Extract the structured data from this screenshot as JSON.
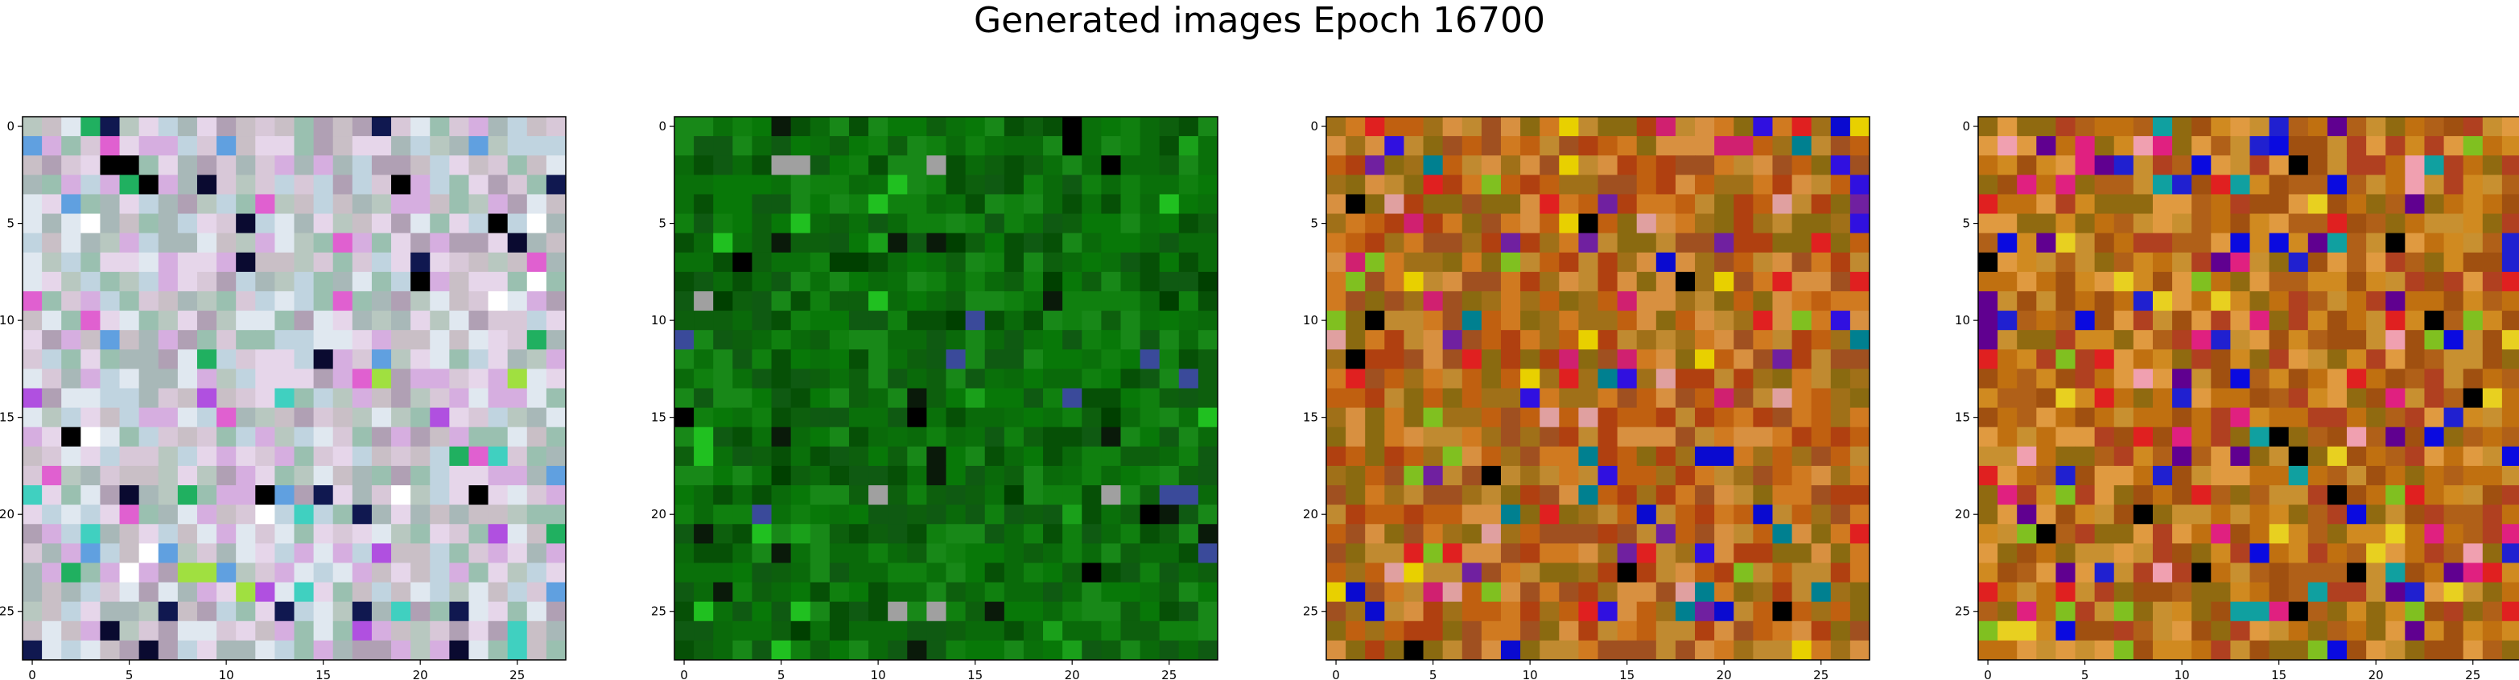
{
  "title": "Generated images Epoch 16700",
  "chart_data": {
    "type": "heatmap",
    "title": "Generated images Epoch 16700",
    "grid_size": 28,
    "xlim": [
      -0.5,
      27.5
    ],
    "ylim": [
      27.5,
      -0.5
    ],
    "x_ticks": [
      0,
      5,
      10,
      15,
      20,
      25
    ],
    "y_ticks": [
      0,
      5,
      10,
      15,
      20,
      25
    ],
    "x_tick_labels": [
      "0",
      "5",
      "10",
      "15",
      "20",
      "25"
    ],
    "y_tick_labels": [
      "0",
      "5",
      "10",
      "15",
      "20",
      "25"
    ],
    "grid": false,
    "panels": [
      {
        "palette": [
          "#c9bfc6",
          "#d8c8d8",
          "#b8c8c0",
          "#e6d6ea",
          "#a8b8b8",
          "#d6aee0",
          "#c0d4e0",
          "#b0a0b4",
          "#e0e8f0",
          "#9ac0b0"
        ],
        "accents": [
          "#000000",
          "#0a0a30",
          "#101850",
          "#b050e0",
          "#40d0c0",
          "#e060d0",
          "#60a0e0",
          "#20b060",
          "#a0e040",
          "#ffffff"
        ],
        "accent_rate": 0.12,
        "seed": 11
      },
      {
        "palette": [
          "#0a6a0a",
          "#087808",
          "#0d5f0d",
          "#10800f",
          "#065006",
          "#188818",
          "#0a700a",
          "#0f5a12"
        ],
        "accents": [
          "#000000",
          "#0a1a0a",
          "#3a4a9a",
          "#a0a0a0",
          "#20c020",
          "#1aa01a",
          "#004000"
        ],
        "accent_rate": 0.1,
        "seed": 27
      },
      {
        "palette": [
          "#c06010",
          "#a07018",
          "#d07a20",
          "#b04010",
          "#c08a30",
          "#8a6a10",
          "#d89040",
          "#a05020"
        ],
        "accents": [
          "#0a0ad0",
          "#3010e0",
          "#e8d000",
          "#d02070",
          "#80c020",
          "#e0a0a0",
          "#7020a0",
          "#e02020",
          "#000000",
          "#008090"
        ],
        "accent_rate": 0.16,
        "seed": 43
      },
      {
        "palette": [
          "#c07010",
          "#b06018",
          "#d08a20",
          "#a05010",
          "#c89030",
          "#906a10",
          "#e09a40",
          "#b04020"
        ],
        "accents": [
          "#0a0ae0",
          "#2020d0",
          "#e8d020",
          "#e02080",
          "#80c020",
          "#f0a0b0",
          "#600090",
          "#e02020",
          "#000000",
          "#10a0a0"
        ],
        "accent_rate": 0.16,
        "seed": 59
      }
    ]
  }
}
